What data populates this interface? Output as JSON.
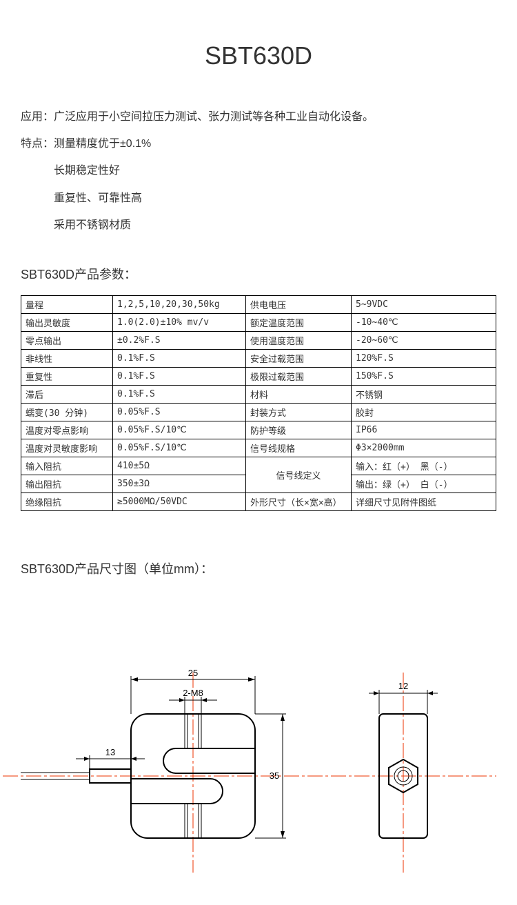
{
  "title": "SBT630D",
  "intro": {
    "application_label": "应用：",
    "application_text": "广泛应用于小空间拉压力测试、张力测试等各种工业自动化设备。",
    "feature_label": "特点：",
    "feature1": "测量精度优于±0.1%",
    "feature2": "长期稳定性好",
    "feature3": "重复性、可靠性高",
    "feature4": "采用不锈钢材质"
  },
  "spec_heading": "SBT630D产品参数：",
  "dim_heading": "SBT630D产品尺寸图（单位mm）：",
  "spec": {
    "rows": [
      [
        "量程",
        "1,2,5,10,20,30,50kg",
        "供电电压",
        "5~9VDC"
      ],
      [
        "输出灵敏度",
        "1.0(2.0)±10% mv/v",
        "额定温度范围",
        "-10~40℃"
      ],
      [
        "零点输出",
        "±0.2%F.S",
        "使用温度范围",
        "-20~60℃"
      ],
      [
        "非线性",
        "0.1%F.S",
        "安全过载范围",
        "120%F.S"
      ],
      [
        "重复性",
        "0.1%F.S",
        "极限过载范围",
        "150%F.S"
      ],
      [
        "滞后",
        "0.1%F.S",
        "材料",
        "不锈钢"
      ],
      [
        "蠕变(30 分钟)",
        "0.05%F.S",
        "封装方式",
        "胶封"
      ],
      [
        "温度对零点影响",
        "0.05%F.S/10℃",
        "防护等级",
        "IP66"
      ],
      [
        "温度对灵敏度影响",
        "0.05%F.S/10℃",
        "信号线规格",
        "Φ3×2000mm"
      ]
    ],
    "row_signal_top": [
      "输入阻抗",
      "410±5Ω",
      "信号线定义",
      "输入：红（+） 黑（-）"
    ],
    "row_signal_bot": [
      "输出阻抗",
      "350±3Ω",
      "输出：绿（+） 白（-）"
    ],
    "row_last": [
      "绝缘阻抗",
      "≥5000MΩ/50VDC",
      "外形尺寸（长×宽×高）",
      "详细尺寸见附件图纸"
    ]
  },
  "dims": {
    "d25": "25",
    "d2m8": "2-M8",
    "d13": "13",
    "d35": "35",
    "d12": "12"
  },
  "colors": {
    "text": "#333333",
    "border": "#000000",
    "centerline": "#ee3300",
    "background": "#ffffff"
  }
}
